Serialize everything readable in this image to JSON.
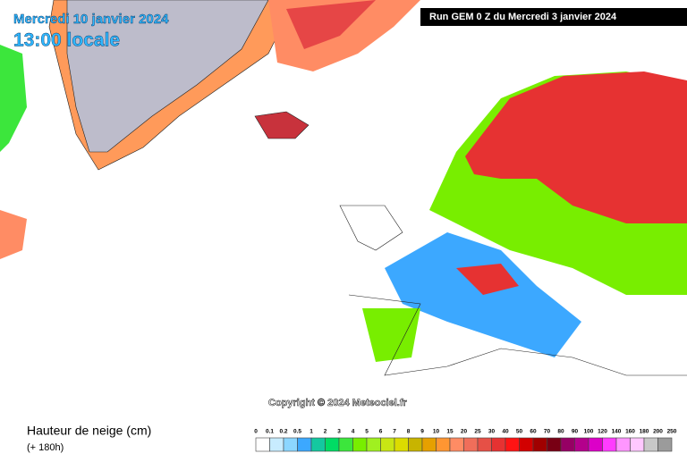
{
  "header": {
    "date": "Mercredi 10 janvier 2024",
    "time": "13:00 locale",
    "run": "Run GEM 0 Z du Mercredi 3 janvier 2024"
  },
  "copyright": "Copyright © 2024 Meteociel.fr",
  "legend": {
    "title": "Hauteur de neige (cm)",
    "subtitle": "(+ 180h)",
    "labels": [
      "0",
      "0.1",
      "0.2",
      "0.5",
      "1",
      "2",
      "3",
      "4",
      "5",
      "6",
      "7",
      "8",
      "9",
      "10",
      "15",
      "20",
      "25",
      "30",
      "40",
      "50",
      "60",
      "70",
      "80",
      "90",
      "100",
      "120",
      "140",
      "160",
      "180",
      "200",
      "250"
    ],
    "colors": [
      "#ffffff",
      "#c8ecff",
      "#8cd6ff",
      "#3ca8ff",
      "#14c8a0",
      "#00dc64",
      "#3ce63c",
      "#78ee00",
      "#a0f020",
      "#c8e614",
      "#dcdc00",
      "#c8b400",
      "#e6a000",
      "#ff9632",
      "#ff8c64",
      "#f06e5a",
      "#e65046",
      "#e63232",
      "#ff1414",
      "#d20000",
      "#a00000",
      "#780014",
      "#960064",
      "#b4008c",
      "#dc00c8",
      "#ff3cff",
      "#ff96ff",
      "#ffc8ff",
      "#c8c8c8",
      "#9b9b9b"
    ]
  }
}
